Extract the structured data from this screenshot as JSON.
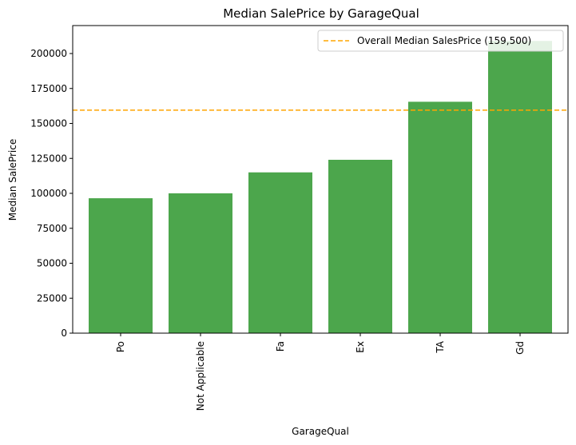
{
  "chart_data": {
    "type": "bar",
    "title": "Median SalePrice by GarageQual",
    "xlabel": "GarageQual",
    "ylabel": "Median SalePrice",
    "categories": [
      "Po",
      "Not Applicable",
      "Fa",
      "Ex",
      "TA",
      "Gd"
    ],
    "values": [
      96500,
      100000,
      115000,
      124000,
      165500,
      209000
    ],
    "ylim": [
      0,
      220000
    ],
    "yticks": [
      0,
      25000,
      50000,
      75000,
      100000,
      125000,
      150000,
      175000,
      200000
    ],
    "ytick_labels": [
      "0",
      "25000",
      "50000",
      "75000",
      "100000",
      "125000",
      "150000",
      "175000",
      "200000"
    ],
    "bar_color": "#4ca64c",
    "reference_line": {
      "value": 159500,
      "label": "Overall Median SalesPrice (159,500)",
      "color": "#ffa500",
      "style": "dashed"
    },
    "legend_position": "top-right",
    "grid": false
  }
}
